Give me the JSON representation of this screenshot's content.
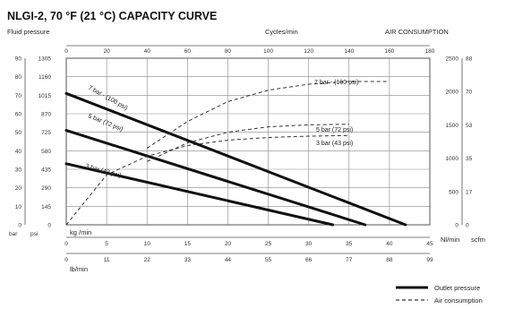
{
  "chart_data": {
    "type": "line",
    "title": "NLGI-2, 70 °F (21 °C) CAPACITY CURVE",
    "left_axis": {
      "title": "Fluid pressure",
      "unit_bar": "bar",
      "unit_psi": "psi",
      "bar_ticks": [
        0,
        10,
        20,
        30,
        40,
        50,
        60,
        70,
        80,
        90
      ],
      "psi_ticks": [
        0,
        145,
        290,
        435,
        580,
        725,
        870,
        1015,
        1160,
        1305
      ],
      "ylim_bar": [
        0,
        90
      ]
    },
    "right_axis": {
      "title": "AIR CONSUMPTION",
      "unit_nlmin": "Nl/min",
      "unit_scfm": "scfm",
      "nlmin_ticks": [
        0,
        500,
        1000,
        1500,
        2000,
        2500
      ],
      "scfm_ticks": [
        0,
        17,
        35,
        53,
        70,
        88
      ],
      "ylim_nlmin": [
        0,
        2500
      ]
    },
    "top_axis": {
      "title": "Cycles/min",
      "ticks": [
        0,
        20,
        40,
        60,
        80,
        100,
        120,
        140,
        160,
        180
      ],
      "xlim": [
        0,
        180
      ]
    },
    "bottom_axis_kg": {
      "unit": "kg /min",
      "ticks": [
        0,
        5,
        10,
        15,
        20,
        25,
        30,
        35,
        40,
        45
      ],
      "xlim": [
        0,
        45
      ]
    },
    "bottom_axis_lb": {
      "unit": "lb/min",
      "ticks": [
        0,
        11,
        22,
        33,
        44,
        55,
        66,
        77,
        88,
        99
      ]
    },
    "series": [
      {
        "name": "7 bar (100 psi)",
        "kind": "outlet",
        "x_kg_min": [
          0,
          42
        ],
        "y_bar": [
          71,
          0
        ]
      },
      {
        "name": "5 bar (72 psi)",
        "kind": "outlet",
        "x_kg_min": [
          0,
          37
        ],
        "y_bar": [
          51,
          0
        ]
      },
      {
        "name": "3 bar (43 psi)",
        "kind": "outlet",
        "x_kg_min": [
          0,
          33
        ],
        "y_bar": [
          33,
          0
        ]
      },
      {
        "name": "7 bar (100 psi)",
        "kind": "air",
        "x_kg_min": [
          10,
          15,
          20,
          25,
          30,
          35,
          40
        ],
        "y_nlmin": [
          1150,
          1550,
          1850,
          2020,
          2110,
          2150,
          2150
        ]
      },
      {
        "name": "5 bar (72 psi)",
        "kind": "air",
        "x_kg_min": [
          10,
          15,
          20,
          25,
          30,
          35
        ],
        "y_nlmin": [
          950,
          1230,
          1390,
          1470,
          1500,
          1510
        ]
      },
      {
        "name": "3 bar (43 psi)",
        "kind": "air",
        "x_kg_min": [
          0,
          5,
          10,
          15,
          20,
          25,
          30,
          35
        ],
        "y_nlmin": [
          0,
          750,
          1030,
          1190,
          1270,
          1310,
          1330,
          1340
        ]
      }
    ],
    "labels": {
      "outlet_7": "7 bar - (100 psi)",
      "outlet_5": "5 bar (72 psi)",
      "outlet_3": "3 bar (43 psi)",
      "air_7": "7 bar - (100 psi)",
      "air_5": "5 bar (72 psi)",
      "air_3": "3 bar (43 psi)"
    },
    "legend": {
      "position": "bottom-right",
      "outlet": "Outlet pressure",
      "air": "Air consumption"
    },
    "grid": true
  }
}
